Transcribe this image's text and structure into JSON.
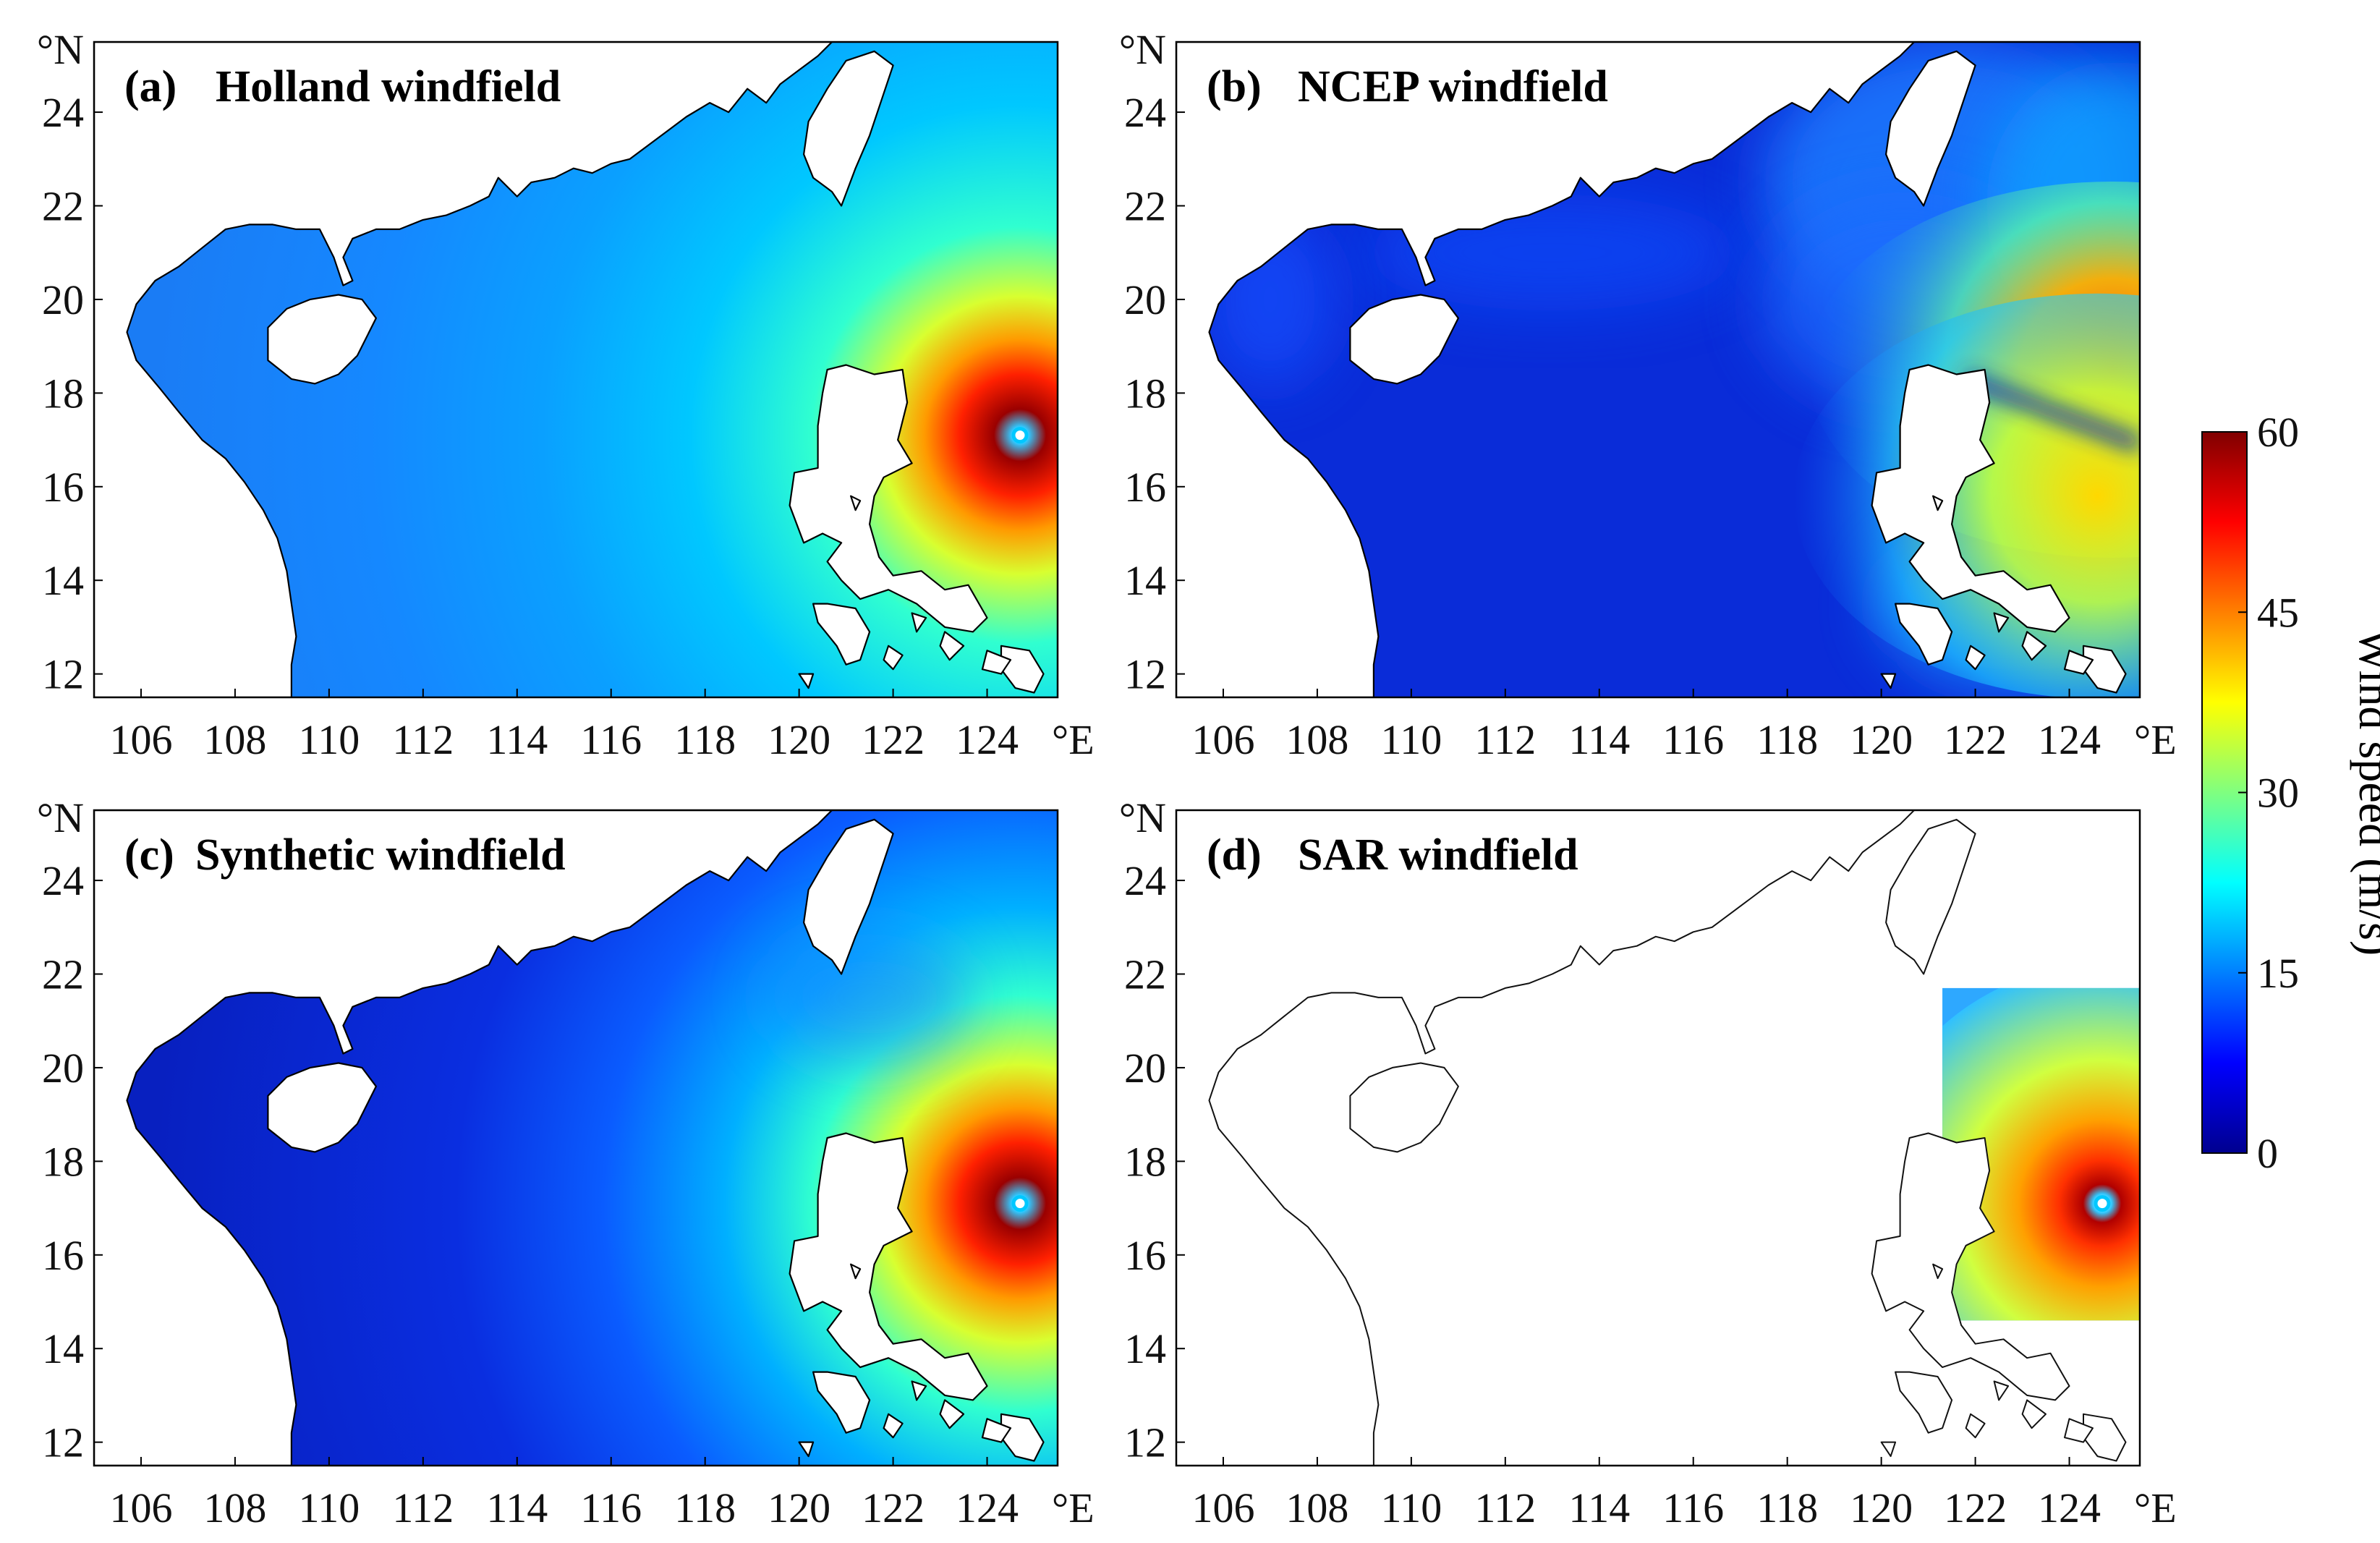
{
  "figure": {
    "panels": [
      {
        "id": "a",
        "label": "(a)",
        "title": "Holland windfield",
        "field": "holland"
      },
      {
        "id": "b",
        "label": "(b)",
        "title": "NCEP windfield",
        "field": "ncep"
      },
      {
        "id": "c",
        "label": "(c)",
        "title": "Synthetic windfield",
        "field": "synthetic"
      },
      {
        "id": "d",
        "label": "(d)",
        "title": "SAR windfield",
        "field": "sar"
      }
    ],
    "axes": {
      "lon_ticks": [
        "106",
        "108",
        "110",
        "112",
        "114",
        "116",
        "118",
        "120",
        "122",
        "124"
      ],
      "lat_ticks": [
        "12",
        "14",
        "16",
        "18",
        "20",
        "22",
        "24"
      ],
      "lon_unit": "°E",
      "lat_unit": "°N",
      "lon_range": [
        105,
        125.5
      ],
      "lat_range": [
        11.5,
        25.5
      ]
    },
    "colorbar": {
      "title": "Wind speed (m/s)",
      "ticks": [
        "0",
        "15",
        "30",
        "45",
        "60"
      ],
      "range": [
        0,
        60
      ],
      "colormap": "jet",
      "colors": [
        "#00008f",
        "#0000ff",
        "#00ffff",
        "#ffff00",
        "#ff0000",
        "#800000"
      ]
    },
    "typhoon_center": {
      "lon": 124.7,
      "lat": 17.1
    }
  }
}
